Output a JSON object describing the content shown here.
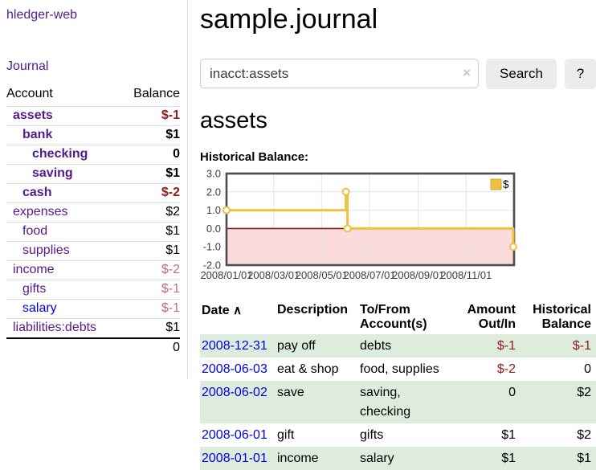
{
  "sidebar": {
    "app_title": "hledger-web",
    "journal_link": "Journal",
    "accounts": {
      "headers": [
        "Account",
        "Balance"
      ],
      "rows": [
        {
          "name": "assets",
          "depth": 1,
          "bold": true,
          "balance": "$-1",
          "neg": "strong",
          "link_style": "purple"
        },
        {
          "name": "bank",
          "depth": 2,
          "bold": true,
          "balance": "$1",
          "neg": null,
          "link_style": "purple"
        },
        {
          "name": "checking",
          "depth": 3,
          "bold": true,
          "balance": "0",
          "neg": null,
          "link_style": "purple"
        },
        {
          "name": "saving",
          "depth": 3,
          "bold": true,
          "balance": "$1",
          "neg": null,
          "link_style": "purple"
        },
        {
          "name": "cash",
          "depth": 2,
          "bold": true,
          "balance": "$-2",
          "neg": "strong",
          "link_style": "purple"
        },
        {
          "name": "expenses",
          "depth": 1,
          "bold": false,
          "balance": "$2",
          "neg": null,
          "link_style": "purple"
        },
        {
          "name": "food",
          "depth": 2,
          "bold": false,
          "balance": "$1",
          "neg": null,
          "link_style": "purple"
        },
        {
          "name": "supplies",
          "depth": 2,
          "bold": false,
          "balance": "$1",
          "neg": null,
          "link_style": "purple"
        },
        {
          "name": "income",
          "depth": 1,
          "bold": false,
          "balance": "$-2",
          "neg": "soft",
          "link_style": "purple"
        },
        {
          "name": "gifts",
          "depth": 2,
          "bold": false,
          "balance": "$-1",
          "neg": "soft",
          "link_style": "purple"
        },
        {
          "name": "salary",
          "depth": 2,
          "bold": false,
          "balance": "$-1",
          "neg": "soft",
          "link_style": "blue"
        },
        {
          "name": "liabilities:debts",
          "depth": 1,
          "bold": false,
          "balance": "$1",
          "neg": null,
          "link_style": "purple"
        }
      ],
      "total": "0"
    }
  },
  "header": {
    "title": "sample.journal"
  },
  "search": {
    "value": "inacct:assets",
    "clear_icon": "×",
    "search_label": "Search",
    "help_label": "?"
  },
  "account_view": {
    "heading": "assets",
    "chart_label": "Historical Balance:"
  },
  "chart_data": {
    "type": "line",
    "step": true,
    "title": "Historical Balance:",
    "series": [
      {
        "name": "$",
        "color": "#edc240",
        "points": [
          [
            "2008-01-01",
            1
          ],
          [
            "2008-06-01",
            2
          ],
          [
            "2008-06-03",
            0
          ],
          [
            "2008-12-31",
            -1
          ]
        ]
      }
    ],
    "x_ticks": [
      "2008/01/01",
      "2008/03/01",
      "2008/05/01",
      "2008/07/01",
      "2008/09/01",
      "2008/11/01"
    ],
    "y_ticks": [
      "3.0",
      "2.0",
      "1.0",
      "0.0",
      "-1.0",
      "-2.0"
    ],
    "ylim": [
      -2,
      3
    ],
    "x_span_days": 366,
    "grid_on": true,
    "negative_fill": "#fbdbdb",
    "zero_line_color": "#8c1717",
    "grid_color": "#e4e4e4",
    "border_color": "#4c4c4c",
    "legend": {
      "label": "$",
      "position": "top-right"
    }
  },
  "register": {
    "headers": {
      "date": "Date",
      "sort_icon": "∧",
      "description": "Description",
      "accounts": "To/From Account(s)",
      "amount": "Amount Out/In",
      "balance": "Historical Balance"
    },
    "rows": [
      {
        "date": "2008-12-31",
        "description": "pay off",
        "accounts": "debts",
        "amount": "$-1",
        "amount_neg": true,
        "balance": "$-1",
        "balance_neg": true
      },
      {
        "date": "2008-06-03",
        "description": "eat & shop",
        "accounts": "food, supplies",
        "amount": "$-2",
        "amount_neg": true,
        "balance": "0",
        "balance_neg": false
      },
      {
        "date": "2008-06-02",
        "description": "save",
        "accounts": "saving, checking",
        "amount": "0",
        "amount_neg": false,
        "balance": "$2",
        "balance_neg": false
      },
      {
        "date": "2008-06-01",
        "description": "gift",
        "accounts": "gifts",
        "amount": "$1",
        "amount_neg": false,
        "balance": "$2",
        "balance_neg": false
      },
      {
        "date": "2008-01-01",
        "description": "income",
        "accounts": "salary",
        "amount": "$1",
        "amount_neg": false,
        "balance": "$1",
        "balance_neg": false
      }
    ]
  }
}
